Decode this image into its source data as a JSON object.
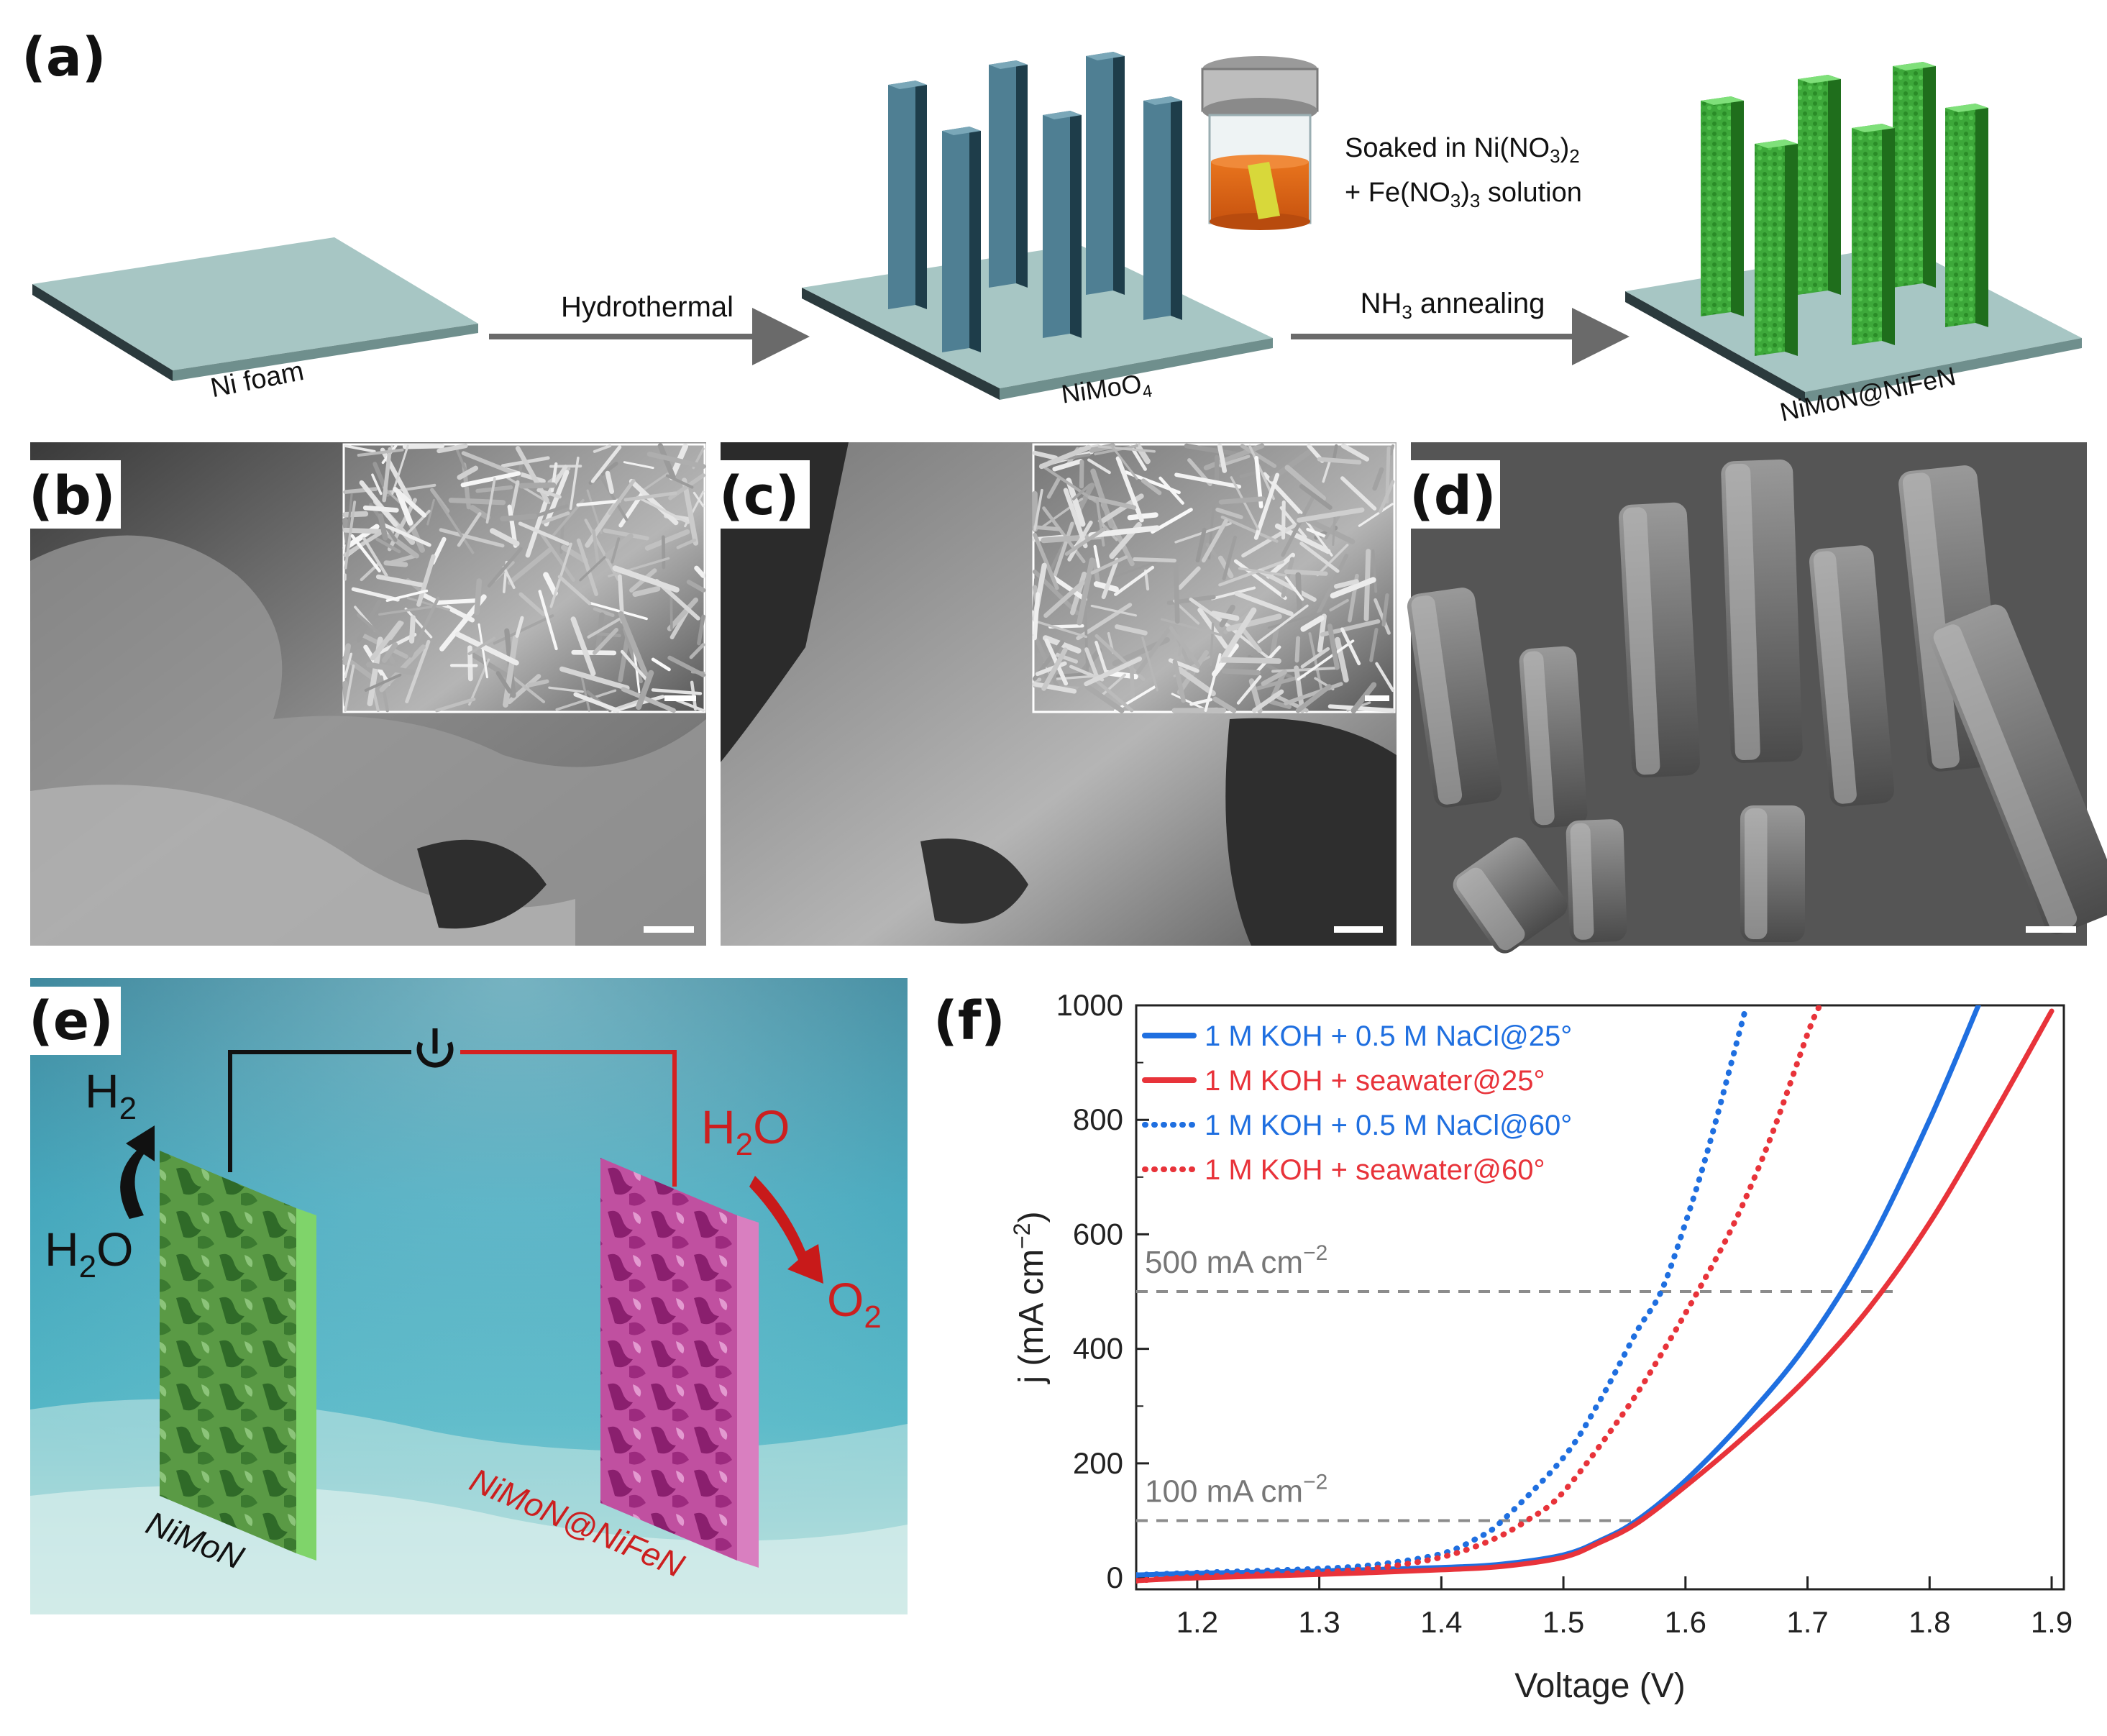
{
  "panel_labels": {
    "a": "(a)",
    "b": "(b)",
    "c": "(c)",
    "d": "(d)",
    "e": "(e)",
    "f": "(f)"
  },
  "panel_a": {
    "step1_label": "Ni foam",
    "arrow1_label": "Hydrothermal",
    "step2_label": "NiMoO",
    "step2_sub": "4",
    "soak_line1_pre": "Soaked in Ni(NO",
    "soak_line1_sub1": "3",
    "soak_line1_post": ")",
    "soak_line1_sub2": "2",
    "soak_line2_pre": "+ Fe(NO",
    "soak_line2_sub1": "3",
    "soak_line2_mid": ")",
    "soak_line2_sub2": "3",
    "soak_line2_post": " solution",
    "arrow2_pre": "NH",
    "arrow2_sub": "3",
    "arrow2_post": " annealing",
    "step3_label": "NiMoN@NiFeN"
  },
  "panel_e": {
    "h2_main": "H",
    "h2_sub": "2",
    "h2o_left_main": "H",
    "h2o_left_sub": "2",
    "h2o_left_tail": "O",
    "h2o_right_main": "H",
    "h2o_right_sub": "2",
    "h2o_right_tail": "O",
    "o2_main": "O",
    "o2_sub": "2",
    "cathode_label": "NiMoN",
    "anode_label": "NiMoN@NiFeN"
  },
  "colors": {
    "blue_series": "#1f6fe0",
    "red_series": "#e8333a",
    "dashed_ref": "#8c8c8c",
    "nimon_green": "#3d8a2f",
    "anode_magenta": "#b0328f",
    "water_teal": "#2f9bb3"
  },
  "chart_data": {
    "type": "line",
    "xlabel": "Voltage (V)",
    "ylabel_pre": "j (mA cm",
    "ylabel_sup": "−2",
    "ylabel_post": ")",
    "xlim": [
      1.15,
      1.91
    ],
    "ylim": [
      -20,
      1000
    ],
    "xticks": [
      1.2,
      1.3,
      1.4,
      1.5,
      1.6,
      1.7,
      1.8,
      1.9
    ],
    "yticks": [
      0,
      200,
      400,
      600,
      800,
      1000
    ],
    "reference_lines": [
      {
        "y": 500,
        "label_pre": "500 mA cm",
        "label_sup": "−2"
      },
      {
        "y": 100,
        "label_pre": "100 mA cm",
        "label_sup": "−2"
      }
    ],
    "legend_position": "top-left",
    "series": [
      {
        "name": "1 M KOH + 0.5 M NaCl@25°",
        "color": "#1f6fe0",
        "style": "solid",
        "x": [
          1.15,
          1.2,
          1.3,
          1.4,
          1.45,
          1.5,
          1.53,
          1.56,
          1.6,
          1.65,
          1.7,
          1.75,
          1.8,
          1.84
        ],
        "y": [
          5,
          8,
          12,
          18,
          24,
          40,
          65,
          100,
          170,
          280,
          410,
          580,
          800,
          1000
        ]
      },
      {
        "name": "1 M KOH + seawater@25°",
        "color": "#e8333a",
        "style": "solid",
        "x": [
          1.15,
          1.2,
          1.3,
          1.4,
          1.45,
          1.5,
          1.53,
          1.56,
          1.6,
          1.65,
          1.7,
          1.75,
          1.8,
          1.85,
          1.9
        ],
        "y": [
          -5,
          0,
          6,
          14,
          20,
          36,
          62,
          95,
          160,
          250,
          350,
          470,
          620,
          800,
          990
        ]
      },
      {
        "name": "1 M KOH + 0.5 M NaCl@60°",
        "color": "#1f6fe0",
        "style": "dotted",
        "x": [
          1.15,
          1.2,
          1.3,
          1.35,
          1.4,
          1.43,
          1.45,
          1.5,
          1.53,
          1.56,
          1.58,
          1.6,
          1.62,
          1.65
        ],
        "y": [
          5,
          9,
          16,
          24,
          42,
          70,
          100,
          210,
          310,
          430,
          500,
          620,
          760,
          1000
        ]
      },
      {
        "name": "1 M KOH + seawater@60°",
        "color": "#e8333a",
        "style": "dotted",
        "x": [
          1.15,
          1.2,
          1.3,
          1.35,
          1.4,
          1.44,
          1.47,
          1.5,
          1.55,
          1.58,
          1.61,
          1.64,
          1.67,
          1.7,
          1.71
        ],
        "y": [
          -5,
          2,
          10,
          18,
          36,
          65,
          100,
          150,
          290,
          390,
          500,
          620,
          770,
          950,
          1000
        ]
      }
    ]
  }
}
